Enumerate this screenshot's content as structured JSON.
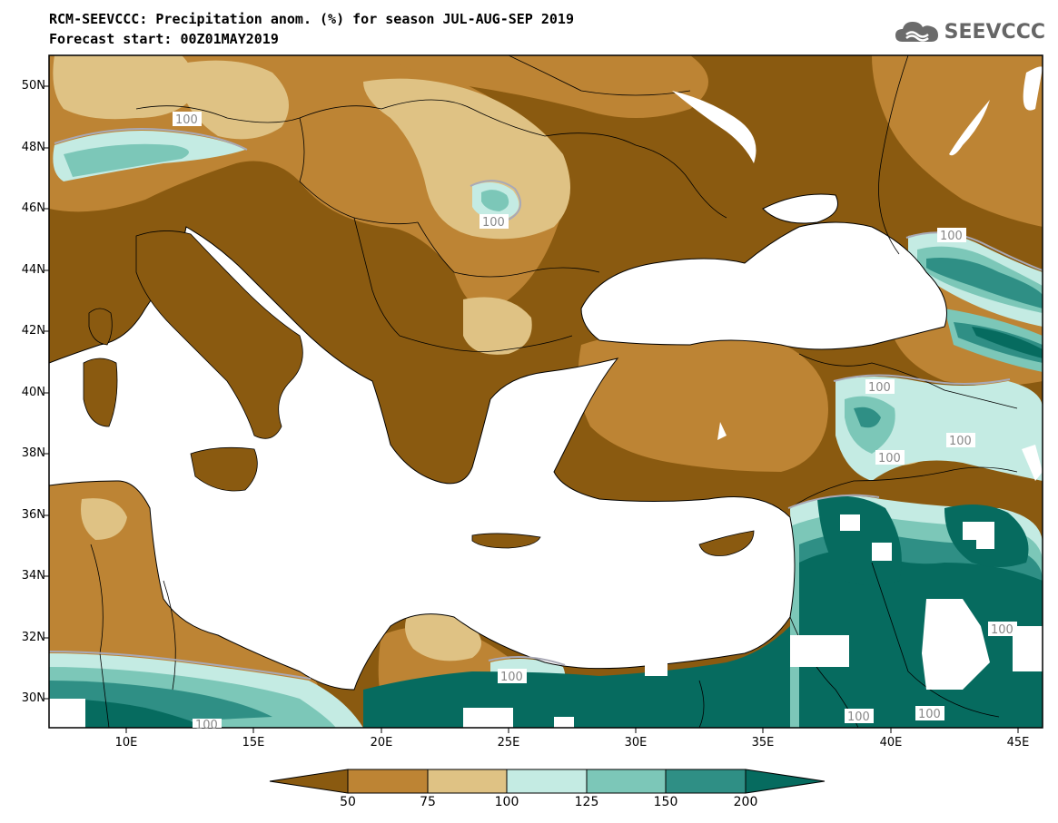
{
  "header": {
    "title_line1": "RCM-SEEVCCC: Precipitation anom. (%) for season JUL-AUG-SEP 2019",
    "title_line2": "Forecast start: 00Z01MAY2019",
    "logo_text": "SEEVCCC"
  },
  "map": {
    "lat_labels": [
      "50N",
      "48N",
      "46N",
      "44N",
      "42N",
      "40N",
      "38N",
      "36N",
      "34N",
      "32N",
      "30N"
    ],
    "lon_labels": [
      "10E",
      "15E",
      "20E",
      "25E",
      "30E",
      "35E",
      "40E",
      "45E"
    ],
    "contour_labels": [
      "100",
      "100",
      "100",
      "100",
      "100",
      "100",
      "100",
      "100",
      "100",
      "100",
      "100"
    ]
  },
  "legend": {
    "values": [
      "50",
      "75",
      "100",
      "125",
      "150",
      "200"
    ],
    "colors": [
      "#8a5a10",
      "#bd8434",
      "#dfc284",
      "#c4ebe3",
      "#7cc7b8",
      "#2f8f85",
      "#066b5f"
    ]
  }
}
